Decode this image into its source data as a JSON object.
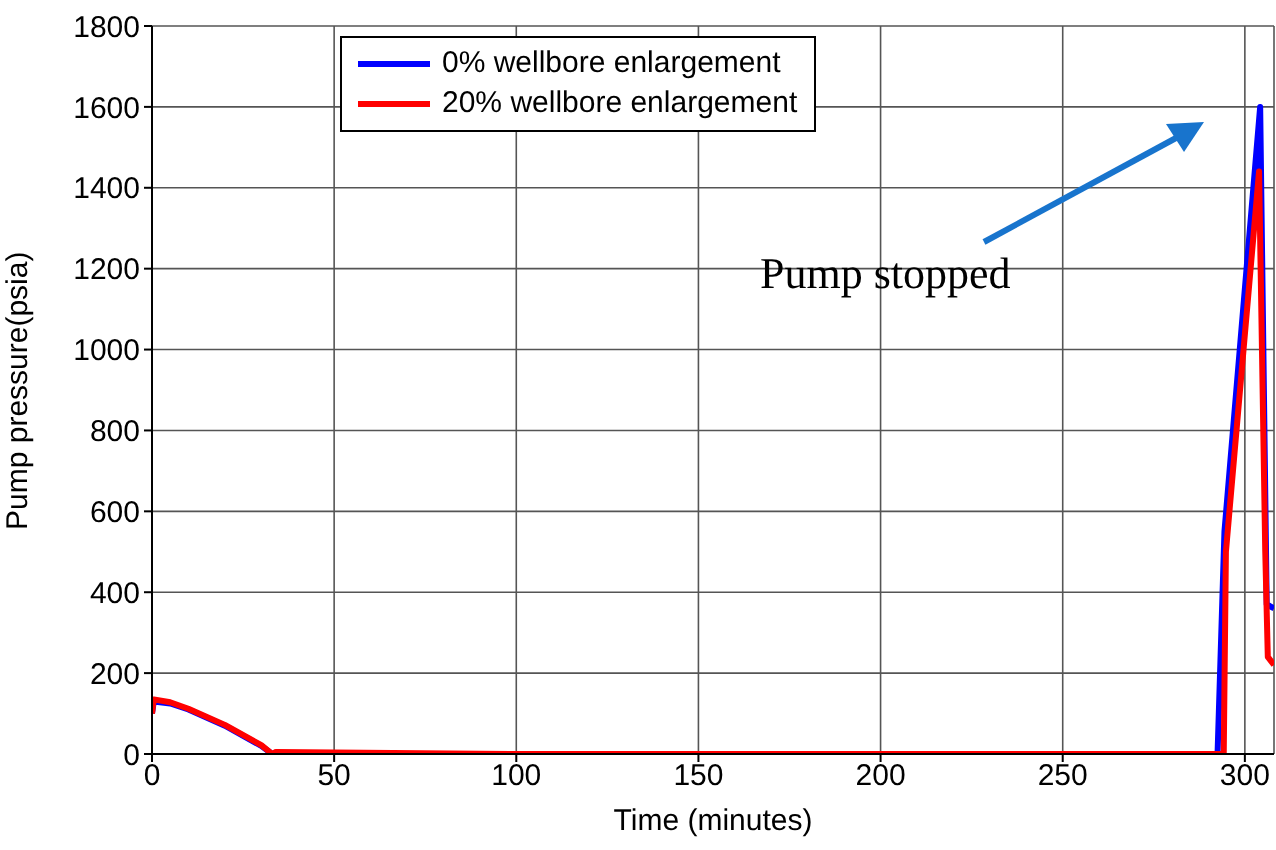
{
  "chart_data": {
    "type": "line",
    "xlabel": "Time (minutes)",
    "ylabel": "Pump pressure(psia)",
    "xlim": [
      0,
      308
    ],
    "xticks": [
      0,
      50,
      100,
      150,
      200,
      250,
      300
    ],
    "ylim": [
      0,
      1800
    ],
    "yticks": [
      0,
      200,
      400,
      600,
      800,
      1000,
      1200,
      1400,
      1600,
      1800
    ],
    "grid": true,
    "legend": "top left",
    "marker": "none",
    "line_style": "solid",
    "annotations": [
      "Pump stopped"
    ],
    "series": [
      {
        "name": "0% wellbore enlargement",
        "color": "#0000ff",
        "x": [
          0,
          0.5,
          5,
          10,
          20,
          30,
          33,
          100,
          200,
          292.5,
          294.4,
          304.2,
          306,
          308
        ],
        "values": [
          100,
          130,
          125,
          110,
          70,
          20,
          0,
          0,
          0,
          0,
          550,
          1600,
          370,
          360
        ]
      },
      {
        "name": "20% wellbore enlargement",
        "color": "#ff0000",
        "x": [
          0,
          0.5,
          5,
          10,
          20,
          30,
          33,
          34,
          100,
          200,
          294.2,
          294.8,
          303.9,
          305.6,
          306.3,
          308
        ],
        "values": [
          100,
          135,
          128,
          112,
          72,
          22,
          0,
          5,
          0,
          0,
          0,
          500,
          1440,
          500,
          240,
          220
        ]
      }
    ]
  }
}
